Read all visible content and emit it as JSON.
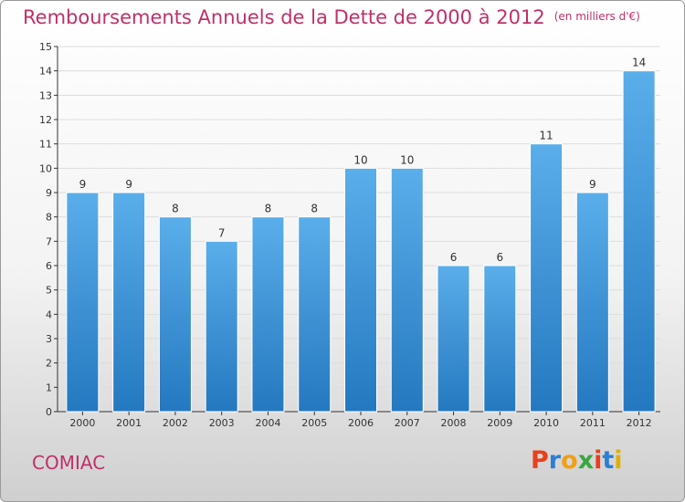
{
  "header": {
    "title": "Remboursements Annuels de la Dette de 2000 à 2012",
    "unit": "(en milliers d'€)"
  },
  "footer": {
    "commune": "COMIAC",
    "logo": "Proxiti",
    "logo_colors": [
      "#e8401c",
      "#2a7fd4",
      "#f0a010",
      "#3aa640",
      "#e8401c",
      "#2a7fd4",
      "#e0b000"
    ]
  },
  "colors": {
    "accent": "#c0306a",
    "bar_light": "#5aaeea",
    "bar_dark": "#2478bf",
    "axis": "#333333",
    "grid": "#dddddd"
  },
  "chart_data": {
    "type": "bar",
    "categories": [
      "2000",
      "2001",
      "2002",
      "2003",
      "2004",
      "2005",
      "2006",
      "2007",
      "2008",
      "2009",
      "2010",
      "2011",
      "2012"
    ],
    "values": [
      9,
      9,
      8,
      7,
      8,
      8,
      10,
      10,
      6,
      6,
      11,
      9,
      14
    ],
    "title": "Remboursements Annuels de la Dette de 2000 à 2012",
    "ylim": [
      0,
      15
    ],
    "yticks": [
      0,
      1,
      2,
      3,
      4,
      5,
      6,
      7,
      8,
      9,
      10,
      11,
      12,
      13,
      14,
      15
    ],
    "grid": true,
    "data_labels": true
  }
}
